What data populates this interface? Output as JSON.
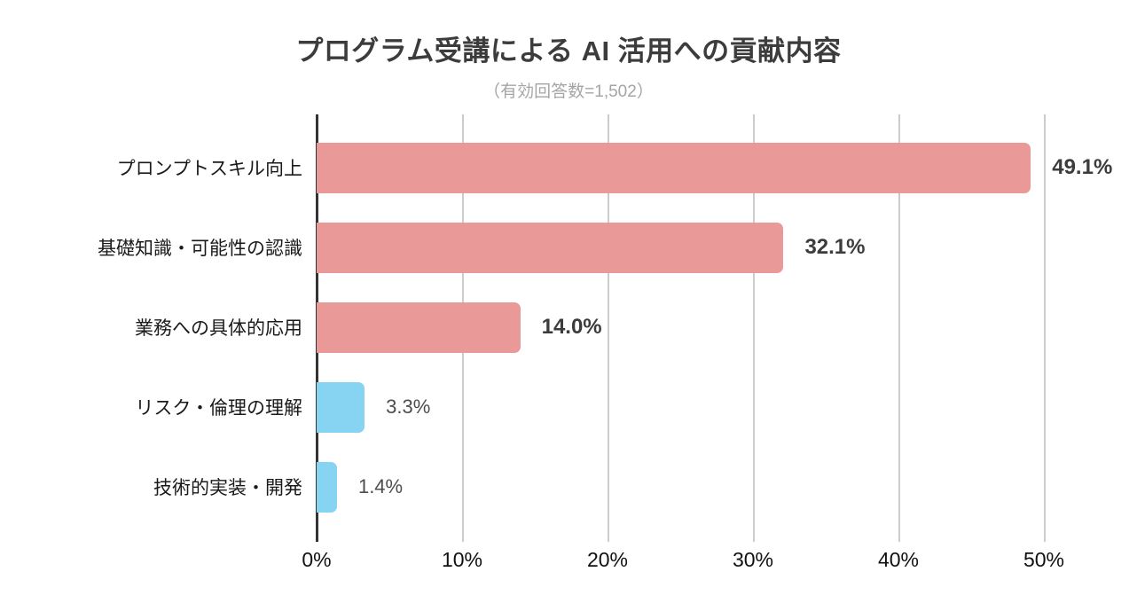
{
  "chart_data": {
    "type": "bar",
    "orientation": "horizontal",
    "title": "プログラム受講による AI 活用への貢献内容",
    "subtitle": "（有効回答数=1,502）",
    "categories": [
      "プロンプトスキル向上",
      "基礎知識・可能性の認識",
      "業務への具体的応用",
      "リスク・倫理の理解",
      "技術的実装・開発"
    ],
    "values": [
      49.1,
      32.1,
      14.0,
      3.3,
      1.4
    ],
    "value_labels": [
      "49.1%",
      "32.1%",
      "14.0%",
      "3.3%",
      "1.4%"
    ],
    "bar_colors": [
      "#ea9999",
      "#ea9999",
      "#ea9999",
      "#87d3f2",
      "#87d3f2"
    ],
    "emphasized": [
      true,
      true,
      true,
      false,
      false
    ],
    "x_ticks": [
      "0%",
      "10%",
      "20%",
      "30%",
      "40%",
      "50%"
    ],
    "x_tick_values": [
      0,
      10,
      20,
      30,
      40,
      50
    ],
    "xlim": [
      0,
      50
    ],
    "grid": true,
    "legend": "none",
    "colors": {
      "pink": "#ea9999",
      "blue": "#87d3f2",
      "gridline": "#cccccc",
      "axis_line": "#333333",
      "title_text": "#3c3c3c",
      "subtitle_text": "#a5a5a5"
    }
  }
}
